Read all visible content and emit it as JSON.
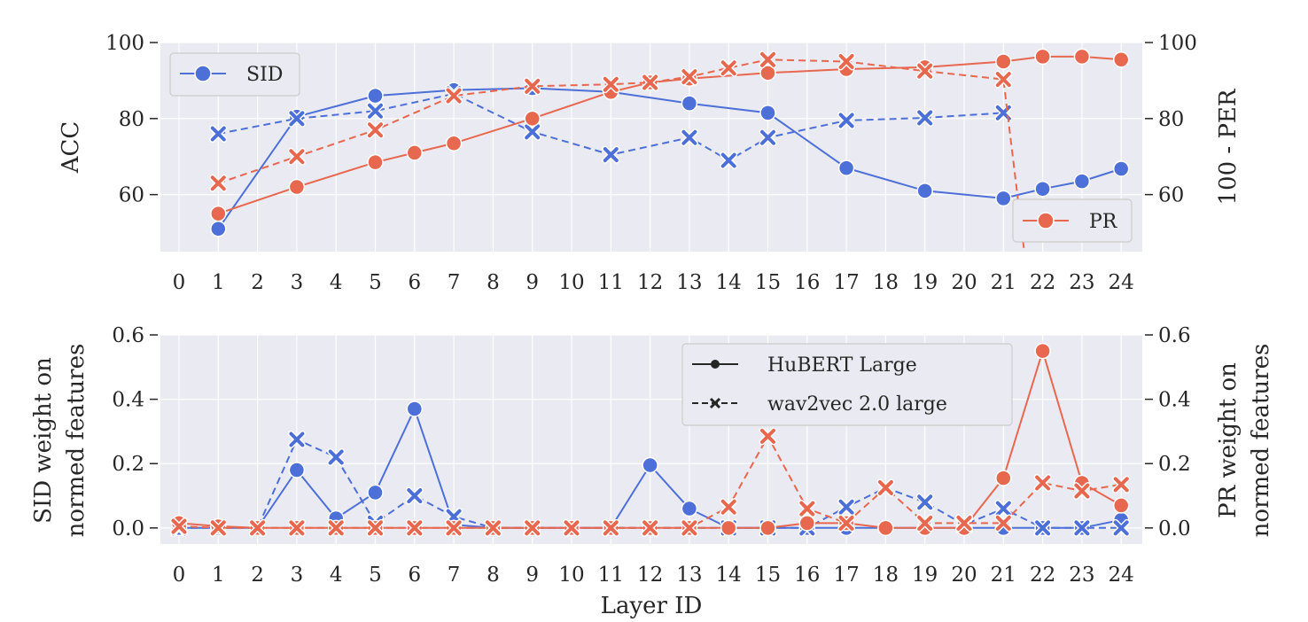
{
  "colors": {
    "sid": "#4c6fd8",
    "pr": "#e8674f",
    "bg": "#eaeaf2",
    "grid": "#ffffff",
    "text": "#262626"
  },
  "chart_data": [
    {
      "type": "line",
      "categories": [
        "0",
        "1",
        "2",
        "3",
        "4",
        "5",
        "6",
        "7",
        "8",
        "9",
        "10",
        "11",
        "12",
        "13",
        "14",
        "15",
        "16",
        "17",
        "18",
        "19",
        "20",
        "21",
        "22",
        "23",
        "24"
      ],
      "ylabel_left": "ACC",
      "ylabel_right": "100 - PER",
      "ylim": [
        45,
        100
      ],
      "yticks": [
        60,
        80,
        100
      ],
      "legend_left": "SID",
      "legend_right": "PR",
      "grid": true,
      "series": [
        {
          "name": "SID",
          "model": "HuBERT Large",
          "axis": "left",
          "x": [
            1,
            3,
            5,
            7,
            9,
            11,
            13,
            15,
            17,
            19,
            21,
            22,
            23,
            24
          ],
          "y": [
            51,
            80.5,
            86,
            87.5,
            88,
            87,
            84,
            81.5,
            67,
            61,
            59,
            61.5,
            63.5,
            66.8
          ]
        },
        {
          "name": "SID",
          "model": "wav2vec 2.0 large",
          "axis": "left",
          "x": [
            1,
            3,
            5,
            7,
            9,
            11,
            13,
            14,
            15,
            17,
            19,
            21
          ],
          "y": [
            76,
            80,
            82,
            86.5,
            76.5,
            70.5,
            75,
            69,
            75,
            79.5,
            80.2,
            81.5
          ]
        },
        {
          "name": "PR",
          "model": "HuBERT Large",
          "axis": "right",
          "x": [
            1,
            3,
            5,
            6,
            7,
            9,
            11,
            12,
            13,
            15,
            17,
            19,
            21,
            22,
            23,
            24
          ],
          "y": [
            55,
            62,
            68.5,
            71,
            73.5,
            80,
            87,
            89.5,
            90.5,
            92,
            93,
            93.5,
            95,
            96.3,
            96.3,
            95.5
          ]
        },
        {
          "name": "PR",
          "model": "wav2vec 2.0 large",
          "axis": "right",
          "x": [
            1,
            3,
            5,
            7,
            9,
            11,
            12,
            13,
            14,
            15,
            17,
            19,
            21,
            22
          ],
          "y": [
            63,
            70,
            77,
            86,
            88.5,
            89,
            89.5,
            91,
            93.3,
            95.5,
            95,
            92.5,
            90.3,
            5
          ]
        }
      ]
    },
    {
      "type": "line",
      "categories": [
        "0",
        "1",
        "2",
        "3",
        "4",
        "5",
        "6",
        "7",
        "8",
        "9",
        "10",
        "11",
        "12",
        "13",
        "14",
        "15",
        "16",
        "17",
        "18",
        "19",
        "20",
        "21",
        "22",
        "23",
        "24"
      ],
      "xlabel": "Layer ID",
      "ylabel_left": [
        "SID weight on",
        "normed features"
      ],
      "ylabel_right": [
        "PR weight on",
        "normed features"
      ],
      "ylim": [
        -0.05,
        0.6
      ],
      "yticks": [
        "0.0",
        "0.2",
        "0.4",
        "0.6"
      ],
      "legend": [
        "HuBERT Large",
        "wav2vec 2.0 large"
      ],
      "grid": true,
      "series": [
        {
          "name": "SID",
          "model": "HuBERT Large",
          "x": [
            0,
            1,
            2,
            3,
            4,
            5,
            6,
            7,
            8,
            9,
            10,
            11,
            12,
            13,
            14,
            15,
            16,
            17,
            18,
            19,
            20,
            21,
            22,
            23,
            24
          ],
          "y": [
            0,
            0,
            0,
            0.18,
            0.03,
            0.11,
            0.37,
            0.01,
            0,
            0,
            0,
            0,
            0.195,
            0.06,
            0,
            0,
            0,
            0,
            0,
            0,
            0,
            0,
            0,
            0,
            0.025
          ]
        },
        {
          "name": "SID",
          "model": "wav2vec 2.0 large",
          "x": [
            0,
            1,
            2,
            3,
            4,
            5,
            6,
            7,
            8,
            9,
            10,
            11,
            12,
            13,
            14,
            15,
            16,
            17,
            18,
            19,
            20,
            21,
            22,
            23,
            24
          ],
          "y": [
            0,
            0,
            0,
            0.275,
            0.22,
            0.015,
            0.1,
            0.035,
            0,
            0,
            0,
            0,
            0,
            0,
            0,
            0,
            0,
            0.065,
            0.125,
            0.08,
            0.01,
            0.06,
            0,
            0,
            0
          ]
        },
        {
          "name": "PR",
          "model": "HuBERT Large",
          "x": [
            0,
            1,
            2,
            3,
            4,
            5,
            6,
            7,
            8,
            9,
            10,
            11,
            12,
            13,
            14,
            15,
            16,
            17,
            18,
            19,
            20,
            21,
            22,
            23,
            24
          ],
          "y": [
            0.015,
            0.005,
            0,
            0,
            0,
            0,
            0,
            0,
            0,
            0,
            0,
            0,
            0,
            0,
            0,
            0,
            0.015,
            0.015,
            0,
            0,
            0,
            0.155,
            0.55,
            0.14,
            0.07
          ]
        },
        {
          "name": "PR",
          "model": "wav2vec 2.0 large",
          "x": [
            0,
            1,
            2,
            3,
            4,
            5,
            6,
            7,
            8,
            9,
            10,
            11,
            12,
            13,
            14,
            15,
            16,
            17,
            18,
            19,
            20,
            21,
            22,
            23,
            24
          ],
          "y": [
            0.005,
            0,
            0,
            0,
            0,
            0,
            0,
            0,
            0,
            0,
            0,
            0,
            0,
            0,
            0.065,
            0.285,
            0.06,
            0.015,
            0.125,
            0.015,
            0.015,
            0.015,
            0.14,
            0.115,
            0.135
          ]
        }
      ]
    }
  ]
}
